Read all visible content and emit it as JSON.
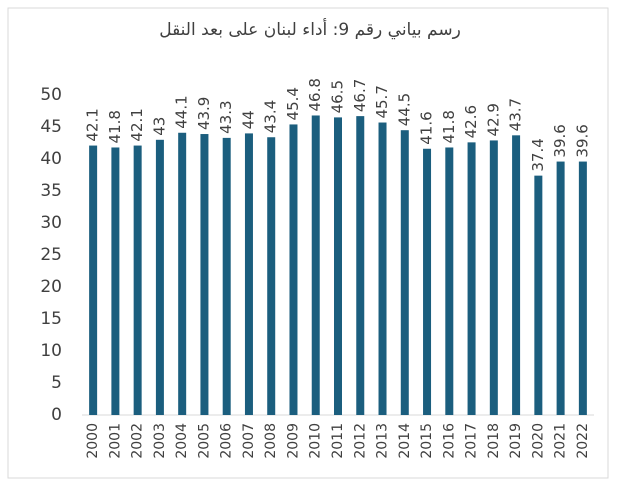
{
  "chart_data": {
    "type": "bar",
    "title": "رسم بياني رقم 9: أداء لبنان على بعد النقل",
    "categories": [
      "2000",
      "2001",
      "2002",
      "2003",
      "2004",
      "2005",
      "2006",
      "2007",
      "2008",
      "2009",
      "2010",
      "2011",
      "2012",
      "2013",
      "2014",
      "2015",
      "2016",
      "2017",
      "2018",
      "2019",
      "2020",
      "2021",
      "2022"
    ],
    "values": [
      42.1,
      41.8,
      42.1,
      43,
      44.1,
      43.9,
      43.3,
      44,
      43.4,
      45.4,
      46.8,
      46.5,
      46.7,
      45.7,
      44.5,
      41.6,
      41.8,
      42.6,
      42.9,
      43.7,
      37.4,
      39.6,
      39.6
    ],
    "color": "#1b5e7e",
    "ylim": [
      0,
      50
    ],
    "yticks": [
      0,
      5,
      10,
      15,
      20,
      25,
      30,
      35,
      40,
      45,
      50
    ],
    "grid": false
  }
}
